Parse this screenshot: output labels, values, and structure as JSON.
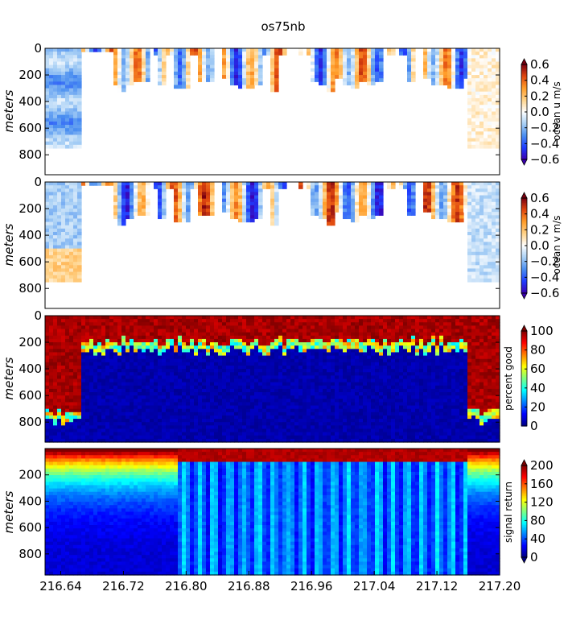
{
  "figure": {
    "title": "os75nb"
  },
  "colormaps": {
    "jet": [
      "#00007f",
      "#0000ff",
      "#007fff",
      "#00ffff",
      "#7fff7f",
      "#ffff00",
      "#ff7f00",
      "#ff0000",
      "#7f0000"
    ],
    "diverging": [
      "#3b00b0",
      "#1f3cff",
      "#4a8ef0",
      "#a9d0f5",
      "#ffffff",
      "#ffd38a",
      "#ff9d2a",
      "#e0470f",
      "#7a0010"
    ]
  },
  "chart_data": [
    {
      "type": "heatmap",
      "panel": "u",
      "ylabel": "meters",
      "colorbar_label": "ocean u m/s",
      "colormap": "diverging",
      "clim": [
        -0.6,
        0.6
      ],
      "colorbar_ticks": [
        "0.6",
        "0.4",
        "0.2",
        "0.0",
        "−0.2",
        "−0.4",
        "−0.6"
      ],
      "colorbar_extend": "both",
      "xlim": [
        216.62,
        217.2
      ],
      "ylim": [
        950,
        0
      ],
      "yticks": [
        0,
        200,
        400,
        600,
        800
      ],
      "data_coverage": "valid bins shallower than ~750 m before 216.665 and after 217.16; only upper ~300 m (patchy) between; blank elsewhere"
    },
    {
      "type": "heatmap",
      "panel": "v",
      "ylabel": "meters",
      "colorbar_label": "ocean v m/s",
      "colormap": "diverging",
      "clim": [
        -0.6,
        0.6
      ],
      "colorbar_ticks": [
        "0.6",
        "0.4",
        "0.2",
        "0.0",
        "−0.2",
        "−0.4",
        "−0.6"
      ],
      "colorbar_extend": "both",
      "xlim": [
        216.62,
        217.2
      ],
      "ylim": [
        950,
        0
      ],
      "yticks": [
        0,
        200,
        400,
        600,
        800
      ],
      "data_coverage": "same valid-data mask as ocean u"
    },
    {
      "type": "heatmap",
      "panel": "pg",
      "ylabel": "meters",
      "colorbar_label": "percent good",
      "colormap": "jet",
      "clim": [
        0,
        100
      ],
      "colorbar_ticks": [
        "100",
        "80",
        "60",
        "40",
        "20",
        "0"
      ],
      "colorbar_extend": "max",
      "xlim": [
        216.62,
        217.2
      ],
      "ylim": [
        950,
        0
      ],
      "yticks": [
        0,
        200,
        400,
        600,
        800
      ],
      "data_coverage": "~100 above ~750 m at the ends, ~100 above ~200-300 m in the middle, ~0 below"
    },
    {
      "type": "heatmap",
      "panel": "amp",
      "ylabel": "meters",
      "colorbar_label": "signal return",
      "colormap": "jet",
      "clim": [
        0,
        200
      ],
      "colorbar_ticks": [
        "200",
        "160",
        "120",
        "80",
        "40",
        "0"
      ],
      "colorbar_extend": "both",
      "xlim": [
        216.62,
        217.2
      ],
      "ylim": [
        960,
        0
      ],
      "yticks": [
        200,
        400,
        600,
        800
      ],
      "xlabel": "",
      "xticks": [
        "216.64",
        "216.72",
        "216.80",
        "216.88",
        "216.96",
        "217.04",
        "217.12",
        "217.20"
      ],
      "data_coverage": "~200 near surface decaying to ~20-60 with depth; vertical stripes mid-section"
    }
  ]
}
